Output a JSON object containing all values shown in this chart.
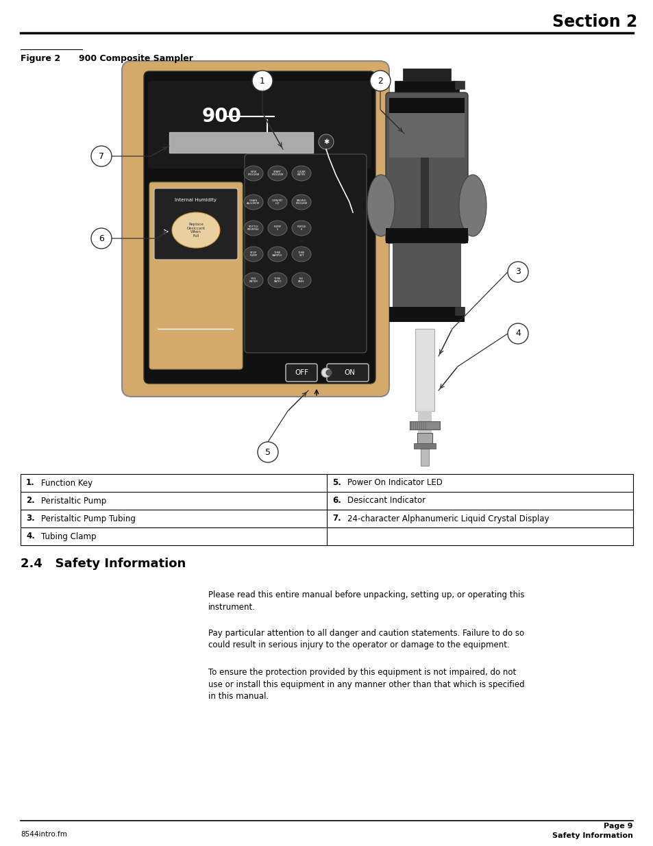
{
  "section_title": "Section 2",
  "figure_label": "Figure 2",
  "figure_title": "900 Composite Sampler",
  "table": {
    "rows": [
      [
        "1.",
        "Function Key",
        "5.",
        "Power On Indicator LED"
      ],
      [
        "2.",
        "Peristaltic Pump",
        "6.",
        "Desiccant Indicator"
      ],
      [
        "3.",
        "Peristaltic Pump Tubing",
        "7.",
        "24-character Alphanumeric Liquid Crystal Display"
      ],
      [
        "4.",
        "Tubing Clamp",
        "",
        ""
      ]
    ]
  },
  "section_heading": "2.4   Safety Information",
  "paragraphs": [
    "Please read this entire manual before unpacking, setting up, or operating this\ninstrument.",
    "Pay particular attention to all danger and caution statements. Failure to do so\ncould result in serious injury to the operator or damage to the equipment.",
    "To ensure the protection provided by this equipment is not impaired, do not\nuse or install this equipment in any manner other than that which is specified\nin this manual."
  ],
  "footer_left": "8544intro.fm",
  "footer_right_top": "Page 9",
  "footer_right_bottom": "Safety Information",
  "bg_color": "#ffffff",
  "text_color": "#000000",
  "line_color": "#000000",
  "sampler_bg": "#d4a96a",
  "sampler_panel": "#1a1a1a",
  "sampler_accent": "#888888"
}
